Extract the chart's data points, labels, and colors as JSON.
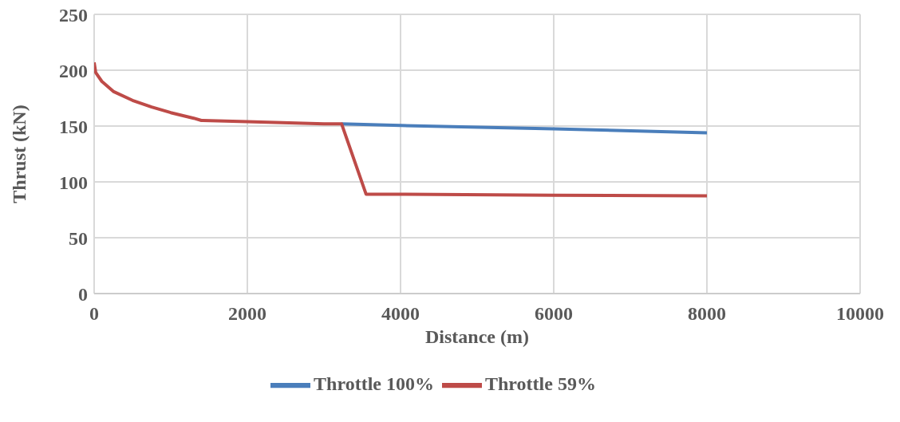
{
  "chart_data": {
    "type": "line",
    "xlabel": "Distance (m)",
    "ylabel": "Thrust (kN)",
    "xlim": [
      0,
      10000
    ],
    "xticks": [
      0,
      2000,
      4000,
      6000,
      8000,
      10000
    ],
    "ylim": [
      0,
      250
    ],
    "yticks": [
      0,
      50,
      100,
      150,
      200,
      250
    ],
    "grid": true,
    "legend": "bottom",
    "marker": "none",
    "line_style": "solid",
    "series": [
      {
        "name": "Throttle 100%",
        "color": "#4a7ebb",
        "x": [
          3230,
          4000,
          6000,
          8000
        ],
        "values": [
          152,
          150.5,
          147.5,
          144
        ]
      },
      {
        "name": "Throttle 59%",
        "color": "#be4b48",
        "x": [
          0,
          20,
          100,
          250,
          500,
          750,
          1000,
          1300,
          1400,
          2000,
          3000,
          3230,
          3550,
          4000,
          6000,
          8000
        ],
        "values": [
          207,
          198,
          190,
          181,
          173,
          167,
          162,
          157,
          155,
          154,
          152,
          152,
          89,
          89,
          88,
          87.5
        ]
      }
    ]
  }
}
